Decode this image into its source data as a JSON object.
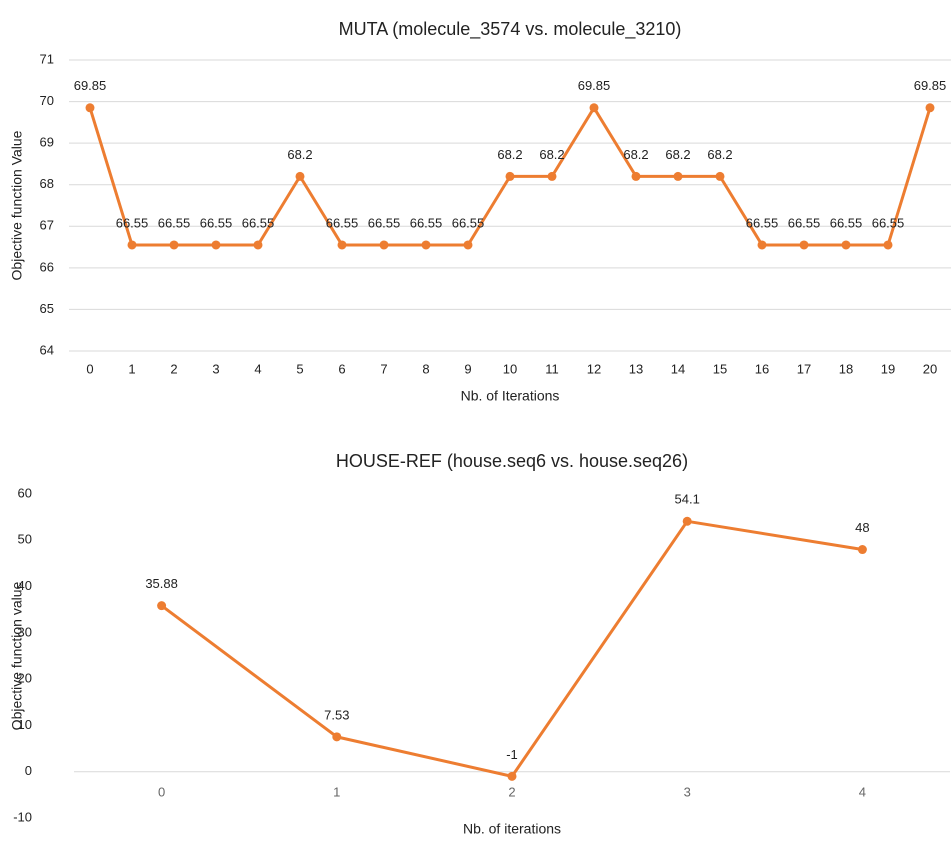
{
  "chart_data": [
    {
      "type": "line",
      "title": "MUTA (molecule_3574 vs. molecule_3210)",
      "xlabel": "Nb. of Iterations",
      "ylabel": "Objective function Value",
      "categories": [
        "0",
        "1",
        "2",
        "3",
        "4",
        "5",
        "6",
        "7",
        "8",
        "9",
        "10",
        "11",
        "12",
        "13",
        "14",
        "15",
        "16",
        "17",
        "18",
        "19",
        "20"
      ],
      "series": [
        {
          "name": "MUTA",
          "color": "#ed7d31",
          "values": [
            69.85,
            66.55,
            66.55,
            66.55,
            66.55,
            68.2,
            66.55,
            66.55,
            66.55,
            66.55,
            68.2,
            68.2,
            69.85,
            68.2,
            68.2,
            68.2,
            66.55,
            66.55,
            66.55,
            66.55,
            69.85
          ]
        }
      ],
      "ylim": [
        64,
        71
      ],
      "yticks": [
        64,
        65,
        66,
        67,
        68,
        69,
        70,
        71
      ],
      "grid": true
    },
    {
      "type": "line",
      "title": "HOUSE-REF (house.seq6 vs. house.seq26)",
      "xlabel": "Nb. of iterations",
      "ylabel": "Objective function value",
      "categories": [
        "0",
        "1",
        "2",
        "3",
        "4"
      ],
      "series": [
        {
          "name": "HOUSE-REF",
          "color": "#ed7d31",
          "values": [
            35.88,
            7.53,
            -1,
            54.1,
            48
          ]
        }
      ],
      "ylim": [
        -10,
        60
      ],
      "yticks": [
        -10,
        0,
        10,
        20,
        30,
        40,
        50,
        60
      ],
      "grid": false
    }
  ]
}
